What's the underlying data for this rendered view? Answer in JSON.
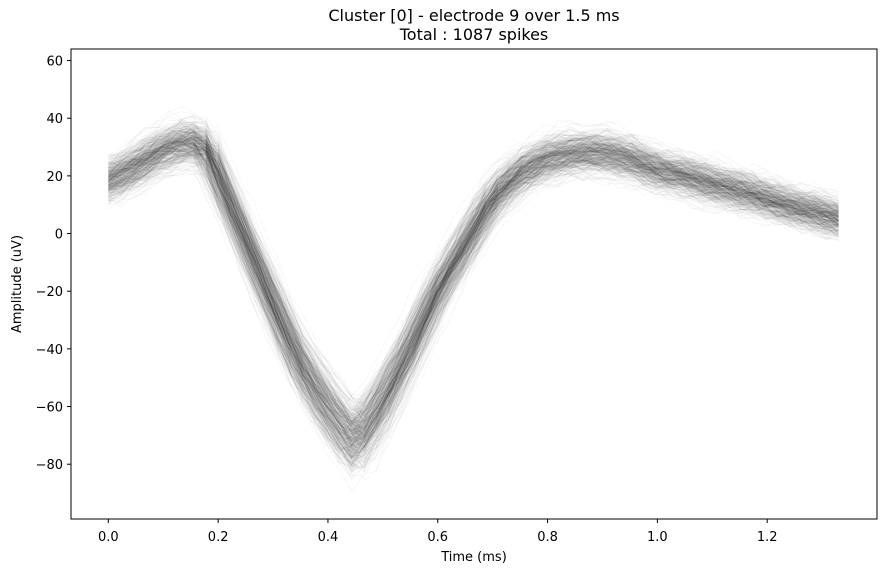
{
  "chart_data": {
    "type": "line",
    "title": "Cluster [0] - electrode 9 over 1.5 ms",
    "subtitle": "Total : 1087 spikes",
    "xlabel": "Time (ms)",
    "ylabel": "Amplitude (uV)",
    "xlim": [
      -0.068,
      1.4
    ],
    "ylim": [
      -99,
      64
    ],
    "xticks": [
      0.0,
      0.2,
      0.4,
      0.6,
      0.8,
      1.0,
      1.2
    ],
    "xtick_labels": [
      "0.0",
      "0.2",
      "0.4",
      "0.6",
      "0.8",
      "1.0",
      "1.2"
    ],
    "yticks": [
      60,
      40,
      20,
      0,
      -20,
      -40,
      -60,
      -80
    ],
    "ytick_labels": [
      "60",
      "40",
      "20",
      "0",
      "−20",
      "−40",
      "−60",
      "−80"
    ],
    "grid": false,
    "spike_count": 1087,
    "line_color": "#000000",
    "line_alpha": 0.03,
    "mean_waveform": {
      "x": [
        0.0,
        0.05,
        0.1,
        0.15,
        0.18,
        0.2,
        0.25,
        0.3,
        0.35,
        0.4,
        0.45,
        0.5,
        0.55,
        0.6,
        0.65,
        0.7,
        0.75,
        0.8,
        0.85,
        0.9,
        0.95,
        1.0,
        1.05,
        1.1,
        1.15,
        1.2,
        1.25,
        1.3,
        1.33
      ],
      "y": [
        18,
        23,
        29,
        32,
        30,
        20,
        -2,
        -24,
        -45,
        -60,
        -73,
        -58,
        -40,
        -20,
        -4,
        12,
        21,
        26,
        28,
        28,
        26,
        22,
        20,
        17,
        15,
        12,
        9,
        7,
        5
      ]
    }
  }
}
